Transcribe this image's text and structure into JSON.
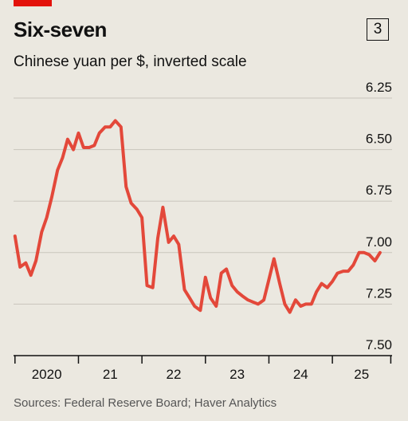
{
  "title": "Six-seven",
  "chart_number": "3",
  "subtitle": "Chinese yuan per $, inverted scale",
  "source": "Sources: Federal Reserve Board; Haver Analytics",
  "colors": {
    "line": "#e3483a",
    "accent": "#e3120b",
    "background": "#ebe8e0",
    "grid": "#c9c5bc",
    "axis": "#111111"
  },
  "chart_data": {
    "type": "line",
    "title": "Six-seven",
    "subtitle": "Chinese yuan per $, inverted scale",
    "xlabel": "",
    "ylabel": "Chinese yuan per $, inverted scale",
    "yscale": "inverted",
    "ylim": [
      6.25,
      7.5
    ],
    "grid": true,
    "y_ticks": [
      6.25,
      6.5,
      6.75,
      7.0,
      7.25,
      7.5
    ],
    "y_tick_labels": [
      "6.25",
      "6.50",
      "6.75",
      "7.00",
      "7.25",
      "7.50"
    ],
    "x_ticks": [
      "2020",
      "21",
      "22",
      "23",
      "24",
      "25"
    ],
    "x_tick_values": [
      2020.0,
      2021.0,
      2022.0,
      2023.0,
      2024.0,
      2025.0
    ],
    "xlim": [
      2019.99,
      2025.94
    ],
    "series": [
      {
        "x": [
          2020.0,
          2020.08,
          2020.17,
          2020.25,
          2020.33,
          2020.42,
          2020.5,
          2020.58,
          2020.67,
          2020.75,
          2020.83,
          2020.92,
          2021.0,
          2021.08,
          2021.17,
          2021.25,
          2021.33,
          2021.42,
          2021.5,
          2021.58,
          2021.67,
          2021.75,
          2021.83,
          2021.92,
          2022.0,
          2022.08,
          2022.17,
          2022.25,
          2022.33,
          2022.42,
          2022.5,
          2022.58,
          2022.67,
          2022.75,
          2022.83,
          2022.92,
          2023.0,
          2023.08,
          2023.17,
          2023.25,
          2023.33,
          2023.42,
          2023.5,
          2023.58,
          2023.67,
          2023.75,
          2023.83,
          2023.92,
          2024.0,
          2024.08,
          2024.17,
          2024.25,
          2024.33,
          2024.42,
          2024.5,
          2024.58,
          2024.67,
          2024.75,
          2024.83,
          2024.92,
          2025.0,
          2025.08,
          2025.17,
          2025.25,
          2025.33,
          2025.42,
          2025.5,
          2025.58,
          2025.67,
          2025.75
        ],
        "y": [
          6.92,
          7.07,
          7.05,
          7.11,
          7.04,
          6.9,
          6.83,
          6.73,
          6.6,
          6.54,
          6.45,
          6.5,
          6.42,
          6.49,
          6.49,
          6.48,
          6.42,
          6.39,
          6.39,
          6.36,
          6.39,
          6.68,
          6.76,
          6.79,
          6.83,
          7.16,
          7.17,
          6.93,
          6.78,
          6.95,
          6.92,
          6.96,
          7.18,
          7.22,
          7.26,
          7.28,
          7.12,
          7.22,
          7.26,
          7.1,
          7.08,
          7.16,
          7.19,
          7.21,
          7.23,
          7.24,
          7.25,
          7.23,
          7.13,
          7.03,
          7.15,
          7.25,
          7.29,
          7.23,
          7.26,
          7.25,
          7.25,
          7.19,
          7.15,
          7.17,
          7.14,
          7.1,
          7.09,
          7.09,
          7.06,
          7.0,
          7.0,
          7.01,
          7.04,
          7.0
        ],
        "color": "#e3483a"
      }
    ]
  }
}
